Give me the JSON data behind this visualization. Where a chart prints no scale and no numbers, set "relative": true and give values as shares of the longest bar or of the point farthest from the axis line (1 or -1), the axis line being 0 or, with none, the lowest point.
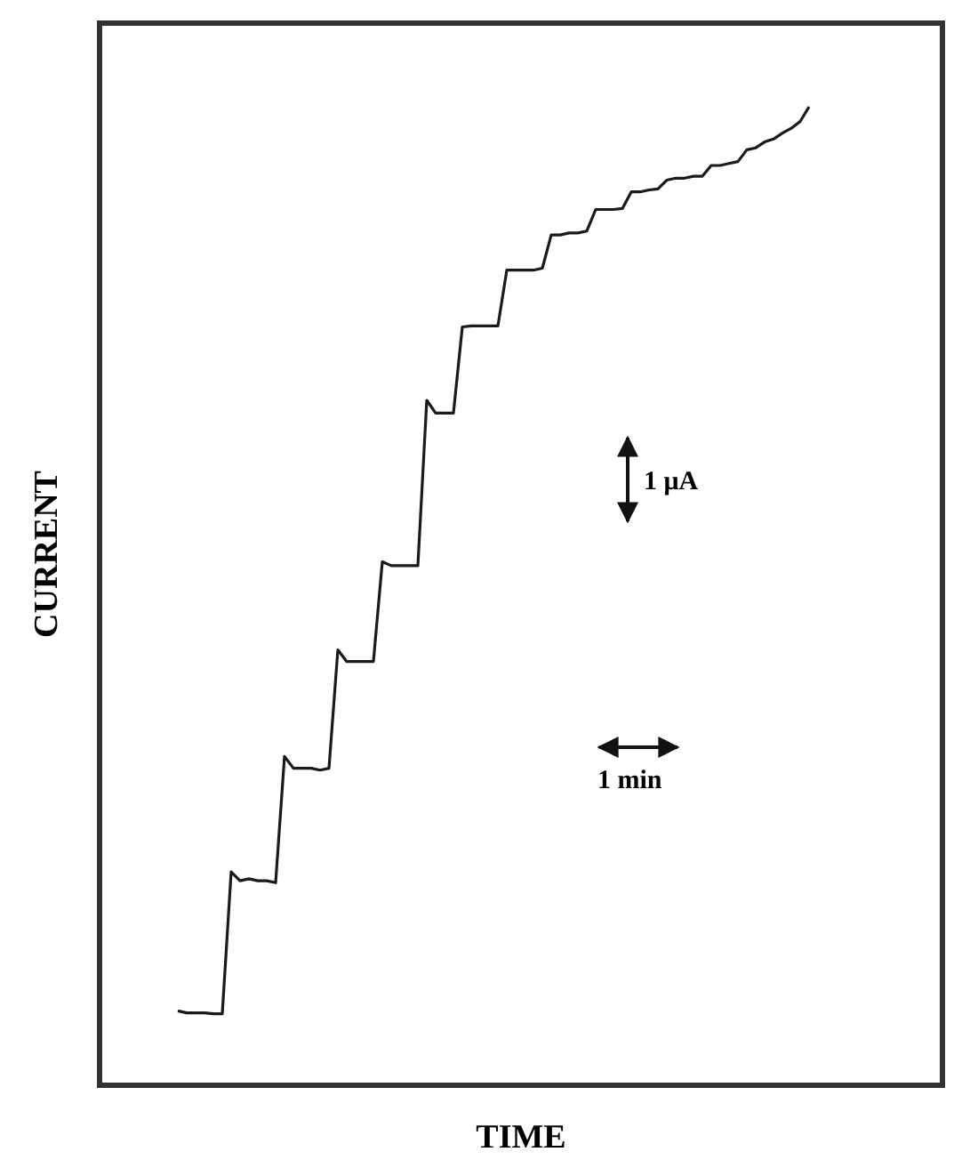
{
  "chart_data": {
    "type": "line",
    "relative": true,
    "xlabel": "TIME",
    "ylabel": "CURRENT",
    "annotations": [
      "1 μA",
      "1 min"
    ],
    "categories": [
      null,
      null,
      null,
      null,
      null,
      null,
      null,
      null,
      null,
      null,
      null,
      null,
      null,
      null,
      null,
      null,
      null,
      null,
      null,
      null,
      null,
      null,
      null,
      null,
      null,
      null,
      null,
      null,
      null,
      null,
      null,
      null,
      null,
      null,
      null,
      null,
      null,
      null,
      null,
      null,
      null,
      null,
      null,
      null,
      null,
      null,
      null,
      null,
      null,
      null,
      null,
      null,
      null,
      null,
      null,
      null,
      null,
      null,
      null,
      null,
      null,
      null,
      null,
      null,
      null,
      null,
      null,
      null,
      null,
      null,
      null,
      null
    ],
    "series": [
      {
        "color": "#1a1a1a",
        "values": [
          0.076,
          0.074,
          0.074,
          0.074,
          0.073,
          0.073,
          0.218,
          0.209,
          0.211,
          0.209,
          0.209,
          0.207,
          0.336,
          0.324,
          0.324,
          0.324,
          0.322,
          0.324,
          0.445,
          0.433,
          0.433,
          0.433,
          0.433,
          0.535,
          0.531,
          0.531,
          0.531,
          0.531,
          0.7,
          0.687,
          0.687,
          0.687,
          0.775,
          0.776,
          0.776,
          0.776,
          0.776,
          0.833,
          0.833,
          0.833,
          0.833,
          0.835,
          0.869,
          0.869,
          0.871,
          0.871,
          0.873,
          0.895,
          0.895,
          0.895,
          0.896,
          0.913,
          0.913,
          0.915,
          0.916,
          0.925,
          0.927,
          0.927,
          0.929,
          0.929,
          0.94,
          0.94,
          0.942,
          0.944,
          0.956,
          0.958,
          0.964,
          0.967,
          0.973,
          0.978,
          0.985,
          1
        ]
      }
    ]
  }
}
